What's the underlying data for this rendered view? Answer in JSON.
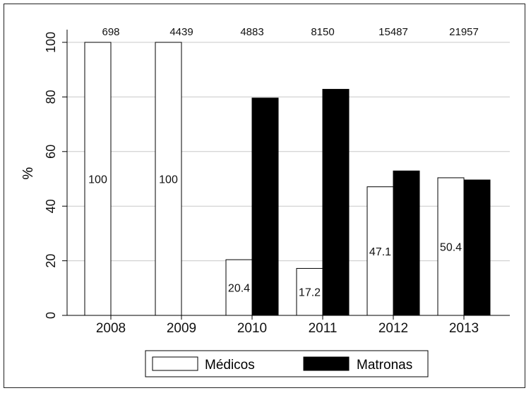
{
  "chart_data": {
    "type": "bar",
    "categories": [
      "2008",
      "2009",
      "2010",
      "2011",
      "2012",
      "2013"
    ],
    "top_counts": [
      "698",
      "4439",
      "4883",
      "8150",
      "15487",
      "21957"
    ],
    "series": [
      {
        "name": "Médicos",
        "color": "#ffffff",
        "values": [
          100,
          100,
          20.4,
          17.2,
          47.1,
          50.4
        ],
        "labels": [
          "100",
          "100",
          "20.4",
          "17.2",
          "47.1",
          "50.4"
        ]
      },
      {
        "name": "Matronas",
        "color": "#000000",
        "values": [
          0,
          0,
          79.6,
          82.8,
          52.9,
          49.6
        ]
      }
    ],
    "ylabel": "%",
    "xlabel": "",
    "ylim": [
      0,
      100
    ],
    "yticks": [
      0,
      20,
      40,
      60,
      80,
      100
    ],
    "grid": true,
    "legend_position": "bottom"
  }
}
